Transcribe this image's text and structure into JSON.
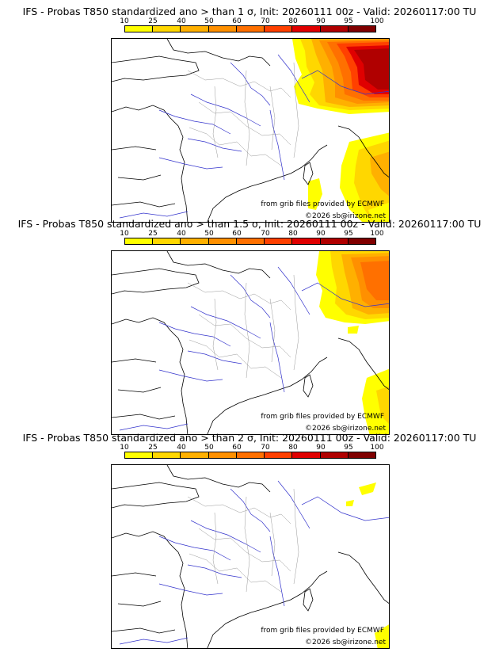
{
  "colors": {
    "scale": [
      "#ffff00",
      "#ffd700",
      "#ffb000",
      "#ff9000",
      "#ff7000",
      "#ff4000",
      "#e00000",
      "#b00000",
      "#800000",
      "#500000"
    ],
    "river": "#3333cc",
    "coast": "#000000",
    "border": "#999999"
  },
  "legend": {
    "ticks": [
      "10",
      "25",
      "40",
      "50",
      "60",
      "70",
      "80",
      "90",
      "95",
      "100"
    ]
  },
  "panels": [
    {
      "title": "IFS - Probas T850  standardized ano > than 1 σ, Init: 20260111 00z - Valid: 20260117:00 TU",
      "source": "from grib files provided by ECMWF",
      "copyright": "©2026 sb@irizone.net"
    },
    {
      "title": "IFS - Probas T850  standardized ano > than 1.5 σ, Init: 20260111 00z - Valid: 20260117:00 TU",
      "source": "from grib files provided by ECMWF",
      "copyright": "©2026 sb@irizone.net"
    },
    {
      "title": "IFS - Probas T850  standardized ano > than 2 σ, Init: 20260111 00z - Valid: 20260117:00 TU",
      "source": "from grib files provided by ECMWF",
      "copyright": "©2026 sb@irizone.net"
    }
  ]
}
